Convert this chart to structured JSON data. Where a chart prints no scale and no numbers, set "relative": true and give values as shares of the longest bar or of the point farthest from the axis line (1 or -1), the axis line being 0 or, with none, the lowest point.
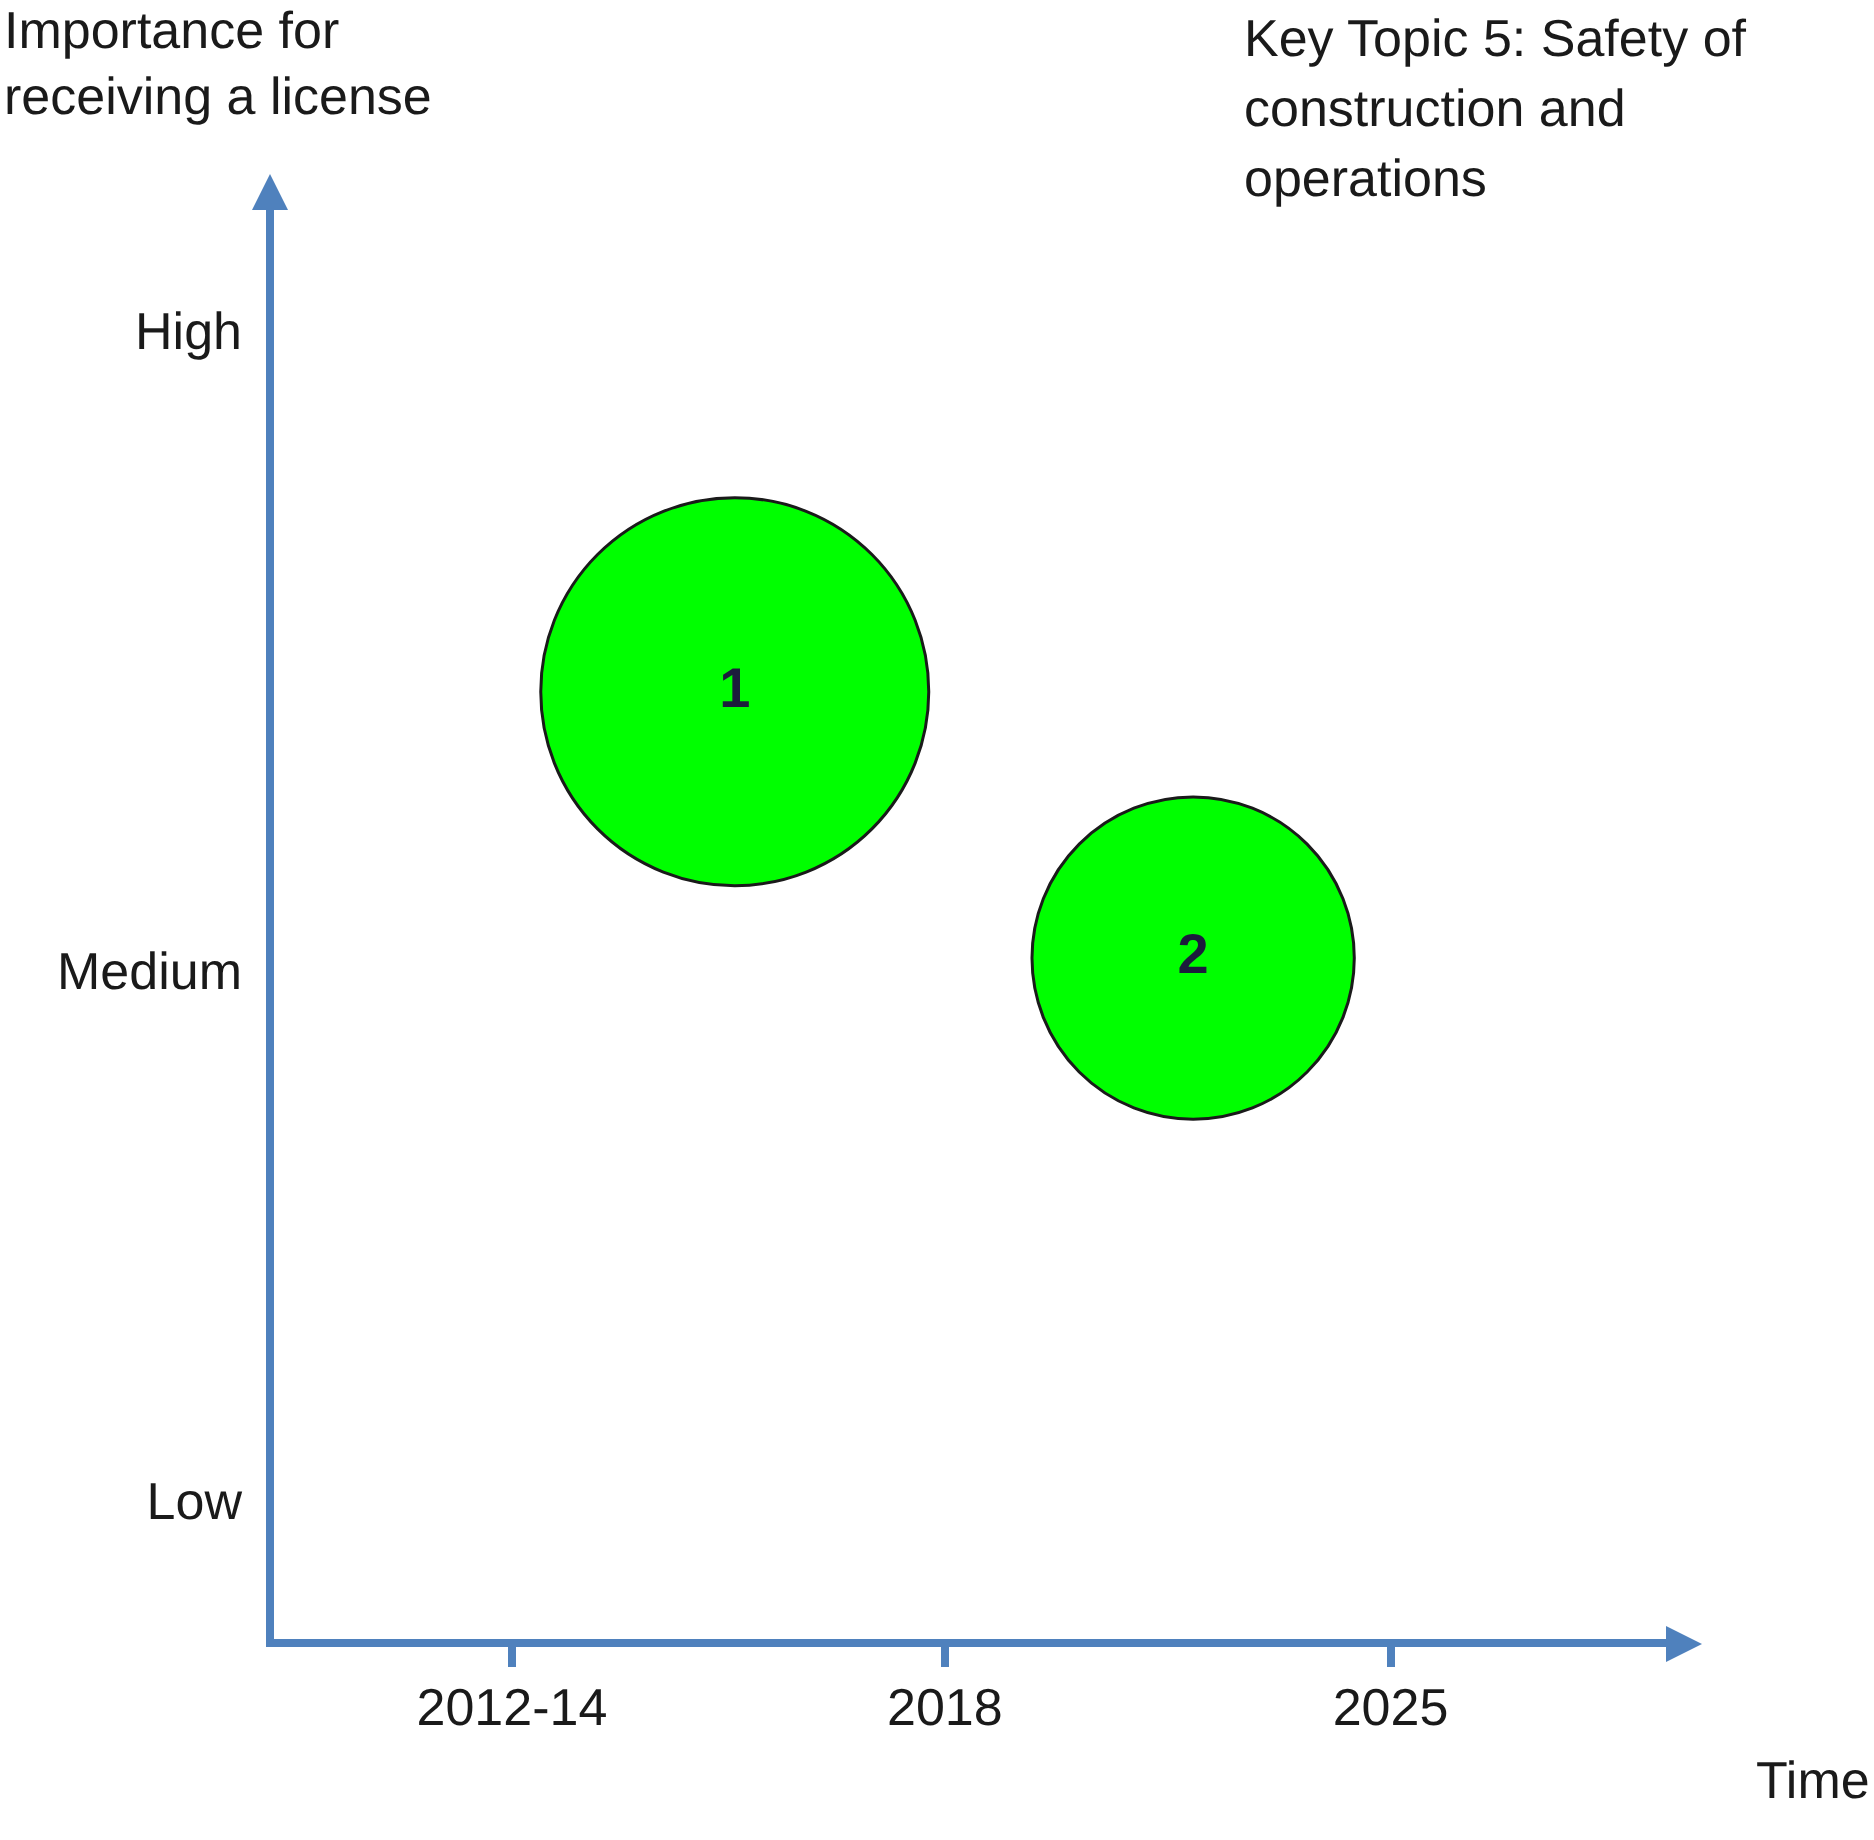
{
  "chart_data": {
    "type": "bubble",
    "title": "Key Topic 5: Safety of construction and operations",
    "xlabel": "Time",
    "annotations": [
      "Importance for receiving a license",
      "High",
      "Medium",
      "Low",
      {
        "text": "1",
        "x": 2014.7,
        "y": 1
      },
      {
        "text": "2",
        "x": 2021.9,
        "y": 0.72
      }
    ],
    "x": [
      2014.7,
      2021.9
    ],
    "values": [
      1,
      0.72
    ],
    "relative": true,
    "sizes": [
      1,
      0.69
    ],
    "color": "#00ff00",
    "xlim": [
      2007.4,
      2029.5
    ],
    "xticks": [
      {
        "value": 2011.2,
        "label": "2012-14"
      },
      2018,
      2025
    ],
    "legend": false
  }
}
